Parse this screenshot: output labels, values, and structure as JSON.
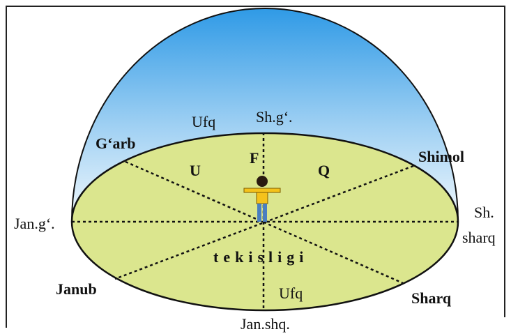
{
  "labels": [
    "Ufq",
    "Sh.g‘.",
    "G‘arb",
    "U",
    "F",
    "Q",
    "Shimol",
    "Jan.g‘.",
    "Sh.",
    "sharq",
    "tekisligi",
    "Janub",
    "Ufq",
    "Sharq",
    "Jan.shq."
  ]
}
